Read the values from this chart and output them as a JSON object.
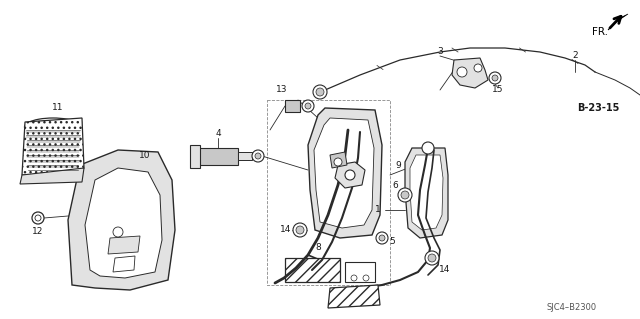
{
  "bg_color": "#ffffff",
  "diagram_code": "SJC4–B2300",
  "ref_code": "B-23-15",
  "fr_label": "FR.",
  "fig_width": 6.4,
  "fig_height": 3.19,
  "dpi": 100,
  "lc": "#2a2a2a",
  "tc": "#1a1a1a",
  "gray_fill": "#c8c8c8",
  "light_gray": "#e2e2e2"
}
